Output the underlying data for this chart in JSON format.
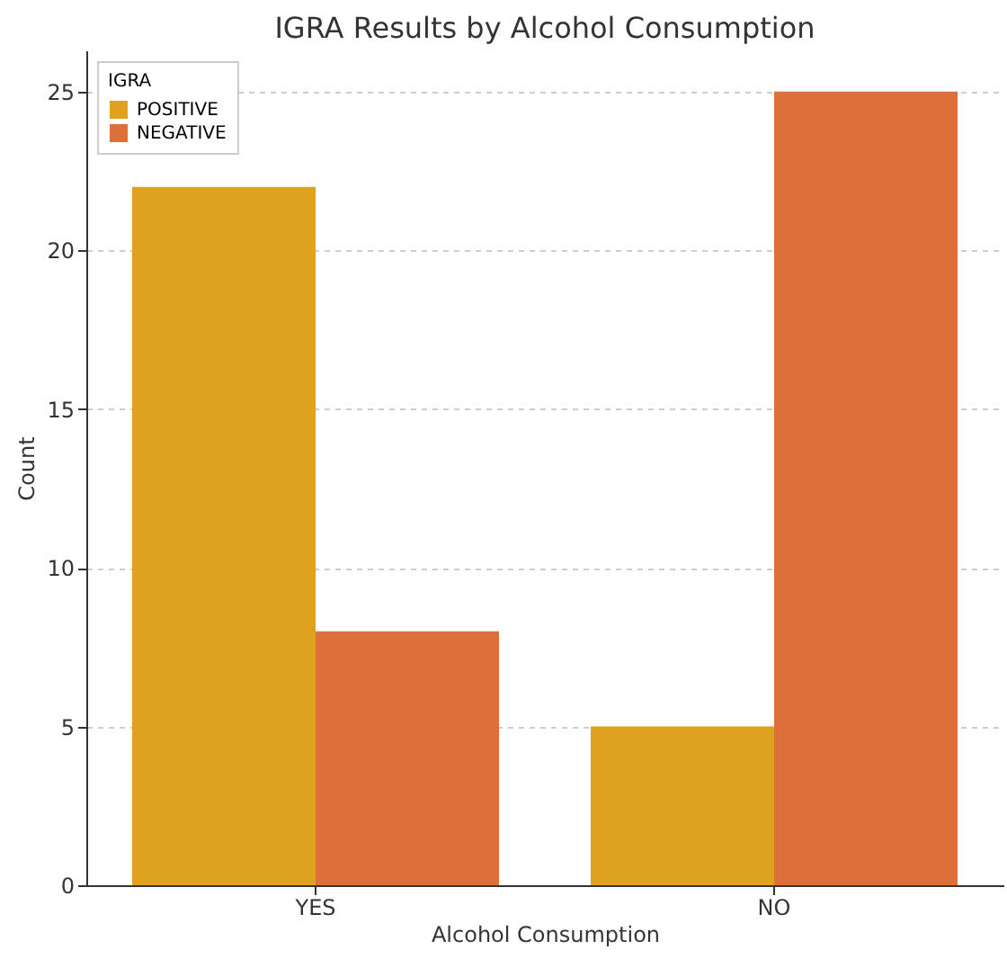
{
  "chart_data": {
    "type": "bar",
    "title": "IGRA Results by Alcohol Consumption",
    "xlabel": "Alcohol Consumption",
    "ylabel": "Count",
    "legend_title": "IGRA",
    "categories": [
      "YES",
      "NO"
    ],
    "series": [
      {
        "name": "POSITIVE",
        "color": "#dfa21f",
        "values": [
          22,
          5
        ]
      },
      {
        "name": "NEGATIVE",
        "color": "#dc6f3a",
        "values": [
          8,
          25
        ]
      }
    ],
    "ylim": [
      0,
      26.3
    ],
    "yticks": [
      0,
      5,
      10,
      15,
      20,
      25
    ],
    "grid": "y",
    "legend": "top left"
  }
}
